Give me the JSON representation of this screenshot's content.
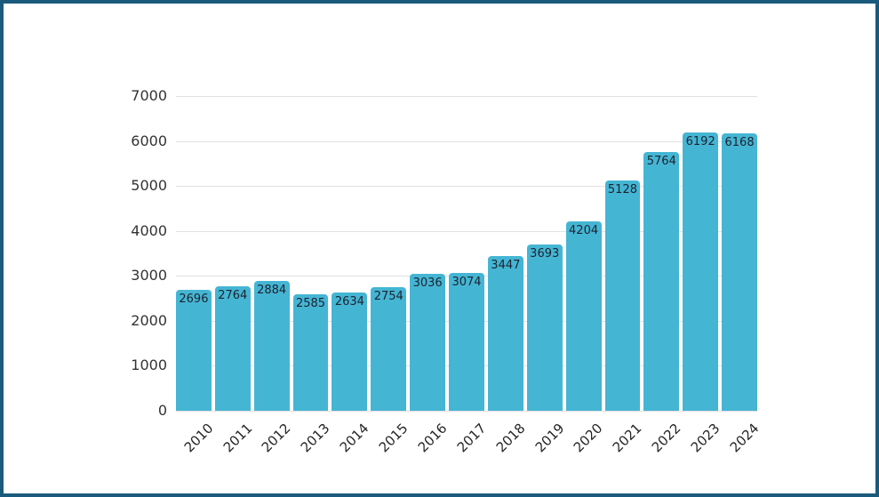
{
  "frame": {
    "background_color": "#ffffff",
    "border_color": "#1a5a7d"
  },
  "chart_data": {
    "type": "bar",
    "title": "",
    "xlabel": "",
    "ylabel": "",
    "categories": [
      "2010",
      "2011",
      "2012",
      "2013",
      "2014",
      "2015",
      "2016",
      "2017",
      "2018",
      "2019",
      "2020",
      "2021",
      "2022",
      "2023",
      "2024"
    ],
    "values": [
      2696,
      2764,
      2884,
      2585,
      2634,
      2754,
      3036,
      3074,
      3447,
      3693,
      4204,
      5128,
      5764,
      6192,
      6168
    ],
    "ylim": [
      0,
      7000
    ],
    "yticks": [
      "0",
      "1000",
      "2000",
      "3000",
      "4000",
      "5000",
      "6000",
      "7000"
    ],
    "grid": true,
    "legend": "none",
    "value_labels_shown": true,
    "bar_color": "#45b5d4",
    "bar_label_color": "#1c232e",
    "axis_tick_color": "#333333",
    "xlabel_color": "#252525",
    "gridline_color": "#e1e1e1"
  }
}
